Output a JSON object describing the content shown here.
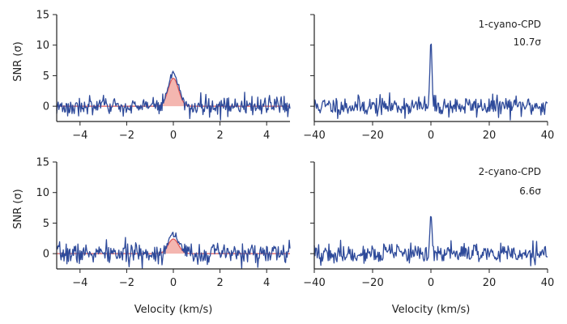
{
  "chart_data": [
    {
      "panel": "top-left",
      "type": "line",
      "ylabel": "SNR (σ)",
      "xlabel": "",
      "xlim": [
        -5,
        5
      ],
      "ylim": [
        -2.5,
        15
      ],
      "xticks": [
        -4,
        -2,
        0,
        2,
        4
      ],
      "xtick_labels": [
        "−4",
        "−2",
        "0",
        "2",
        "4"
      ],
      "yticks": [
        0,
        5,
        10,
        15
      ],
      "ytick_labels": [
        "0",
        "5",
        "10",
        "15"
      ],
      "series": [
        {
          "name": "stacked spectrum",
          "color": "#2e4a9a",
          "noise_amp": 0.75,
          "peak": 5.3,
          "peak_width": 0.22,
          "seed": 3,
          "n": 320
        },
        {
          "name": "model",
          "color": "#e05a5a",
          "fill": "#f4b6b0",
          "peak": 4.6,
          "peak_width": 0.22
        }
      ]
    },
    {
      "panel": "top-right",
      "type": "line",
      "xlabel": "",
      "xlim": [
        -40,
        40
      ],
      "ylim": [
        -2.5,
        15
      ],
      "xticks": [
        -40,
        -20,
        0,
        20,
        40
      ],
      "xtick_labels": [
        "−40",
        "−20",
        "0",
        "20",
        "40"
      ],
      "yticks": [
        0,
        5,
        10,
        15
      ],
      "annotations": [
        "1-cyano-CPD",
        "10.7σ"
      ],
      "series": [
        {
          "name": "matched filter response",
          "color": "#2e4a9a",
          "noise_amp": 0.8,
          "peak": 10.7,
          "peak_width": 0.35,
          "seed": 11,
          "n": 320
        }
      ]
    },
    {
      "panel": "bottom-left",
      "type": "line",
      "ylabel": "SNR (σ)",
      "xlabel": "Velocity (km/s)",
      "xlim": [
        -5,
        5
      ],
      "ylim": [
        -2.5,
        15
      ],
      "xticks": [
        -4,
        -2,
        0,
        2,
        4
      ],
      "xtick_labels": [
        "−4",
        "−2",
        "0",
        "2",
        "4"
      ],
      "yticks": [
        0,
        5,
        10,
        15
      ],
      "ytick_labels": [
        "0",
        "5",
        "10",
        "15"
      ],
      "series": [
        {
          "name": "stacked spectrum",
          "color": "#2e4a9a",
          "noise_amp": 0.85,
          "peak": 3.3,
          "peak_width": 0.22,
          "seed": 7,
          "n": 320
        },
        {
          "name": "model",
          "color": "#e05a5a",
          "fill": "#f4b6b0",
          "peak": 2.4,
          "peak_width": 0.22
        }
      ]
    },
    {
      "panel": "bottom-right",
      "type": "line",
      "xlabel": "Velocity (km/s)",
      "xlim": [
        -40,
        40
      ],
      "ylim": [
        -2.5,
        15
      ],
      "xticks": [
        -40,
        -20,
        0,
        20,
        40
      ],
      "xtick_labels": [
        "−40",
        "−20",
        "0",
        "20",
        "40"
      ],
      "yticks": [
        0,
        5,
        10,
        15
      ],
      "annotations": [
        "2-cyano-CPD",
        "6.6σ"
      ],
      "series": [
        {
          "name": "matched filter response",
          "color": "#2e4a9a",
          "noise_amp": 0.8,
          "peak": 6.6,
          "peak_width": 0.35,
          "seed": 19,
          "n": 320
        }
      ]
    }
  ]
}
